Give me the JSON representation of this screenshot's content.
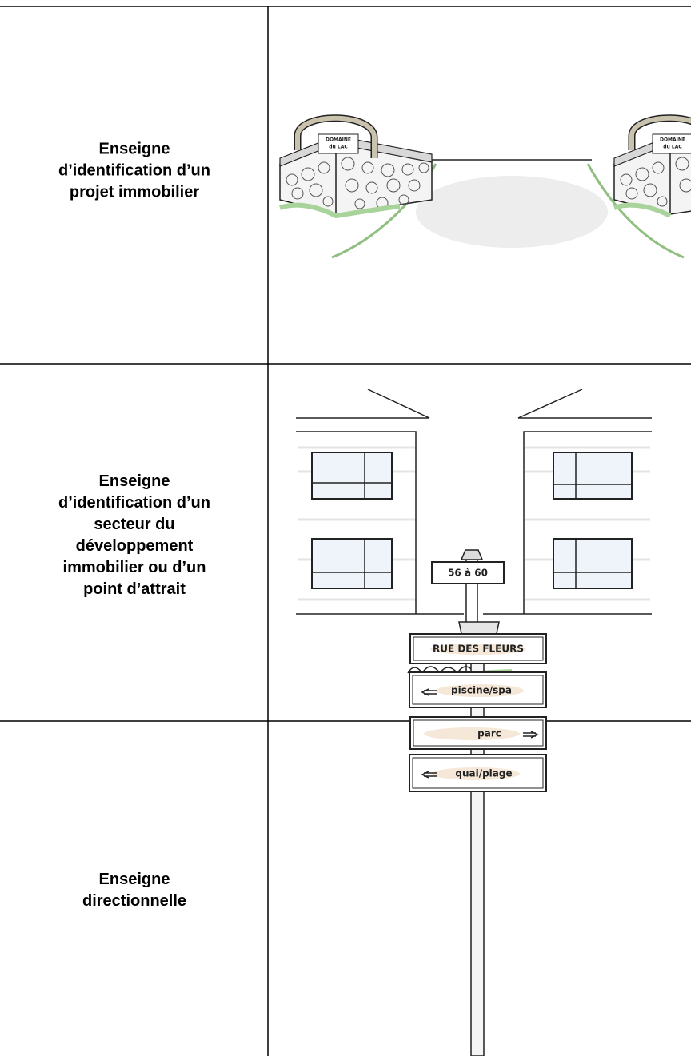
{
  "table": {
    "rows": [
      {
        "label_lines": [
          "Enseigne",
          "d’identification d’un",
          "projet immobilier"
        ],
        "sign_texts": [
          "DOMAINE",
          "du LAC"
        ]
      },
      {
        "label_lines": [
          "Enseigne",
          "d’identification d’un",
          "secteur du",
          "développement",
          "immobilier ou d’un",
          "point d’attrait"
        ],
        "sign_texts": [
          "56 à 60"
        ]
      },
      {
        "label_lines": [
          "Enseigne",
          "directionnelle"
        ],
        "sign_texts": [
          "RUE DES FLEURS",
          "piscine/spa",
          "parc",
          "quai/plage"
        ]
      }
    ]
  }
}
